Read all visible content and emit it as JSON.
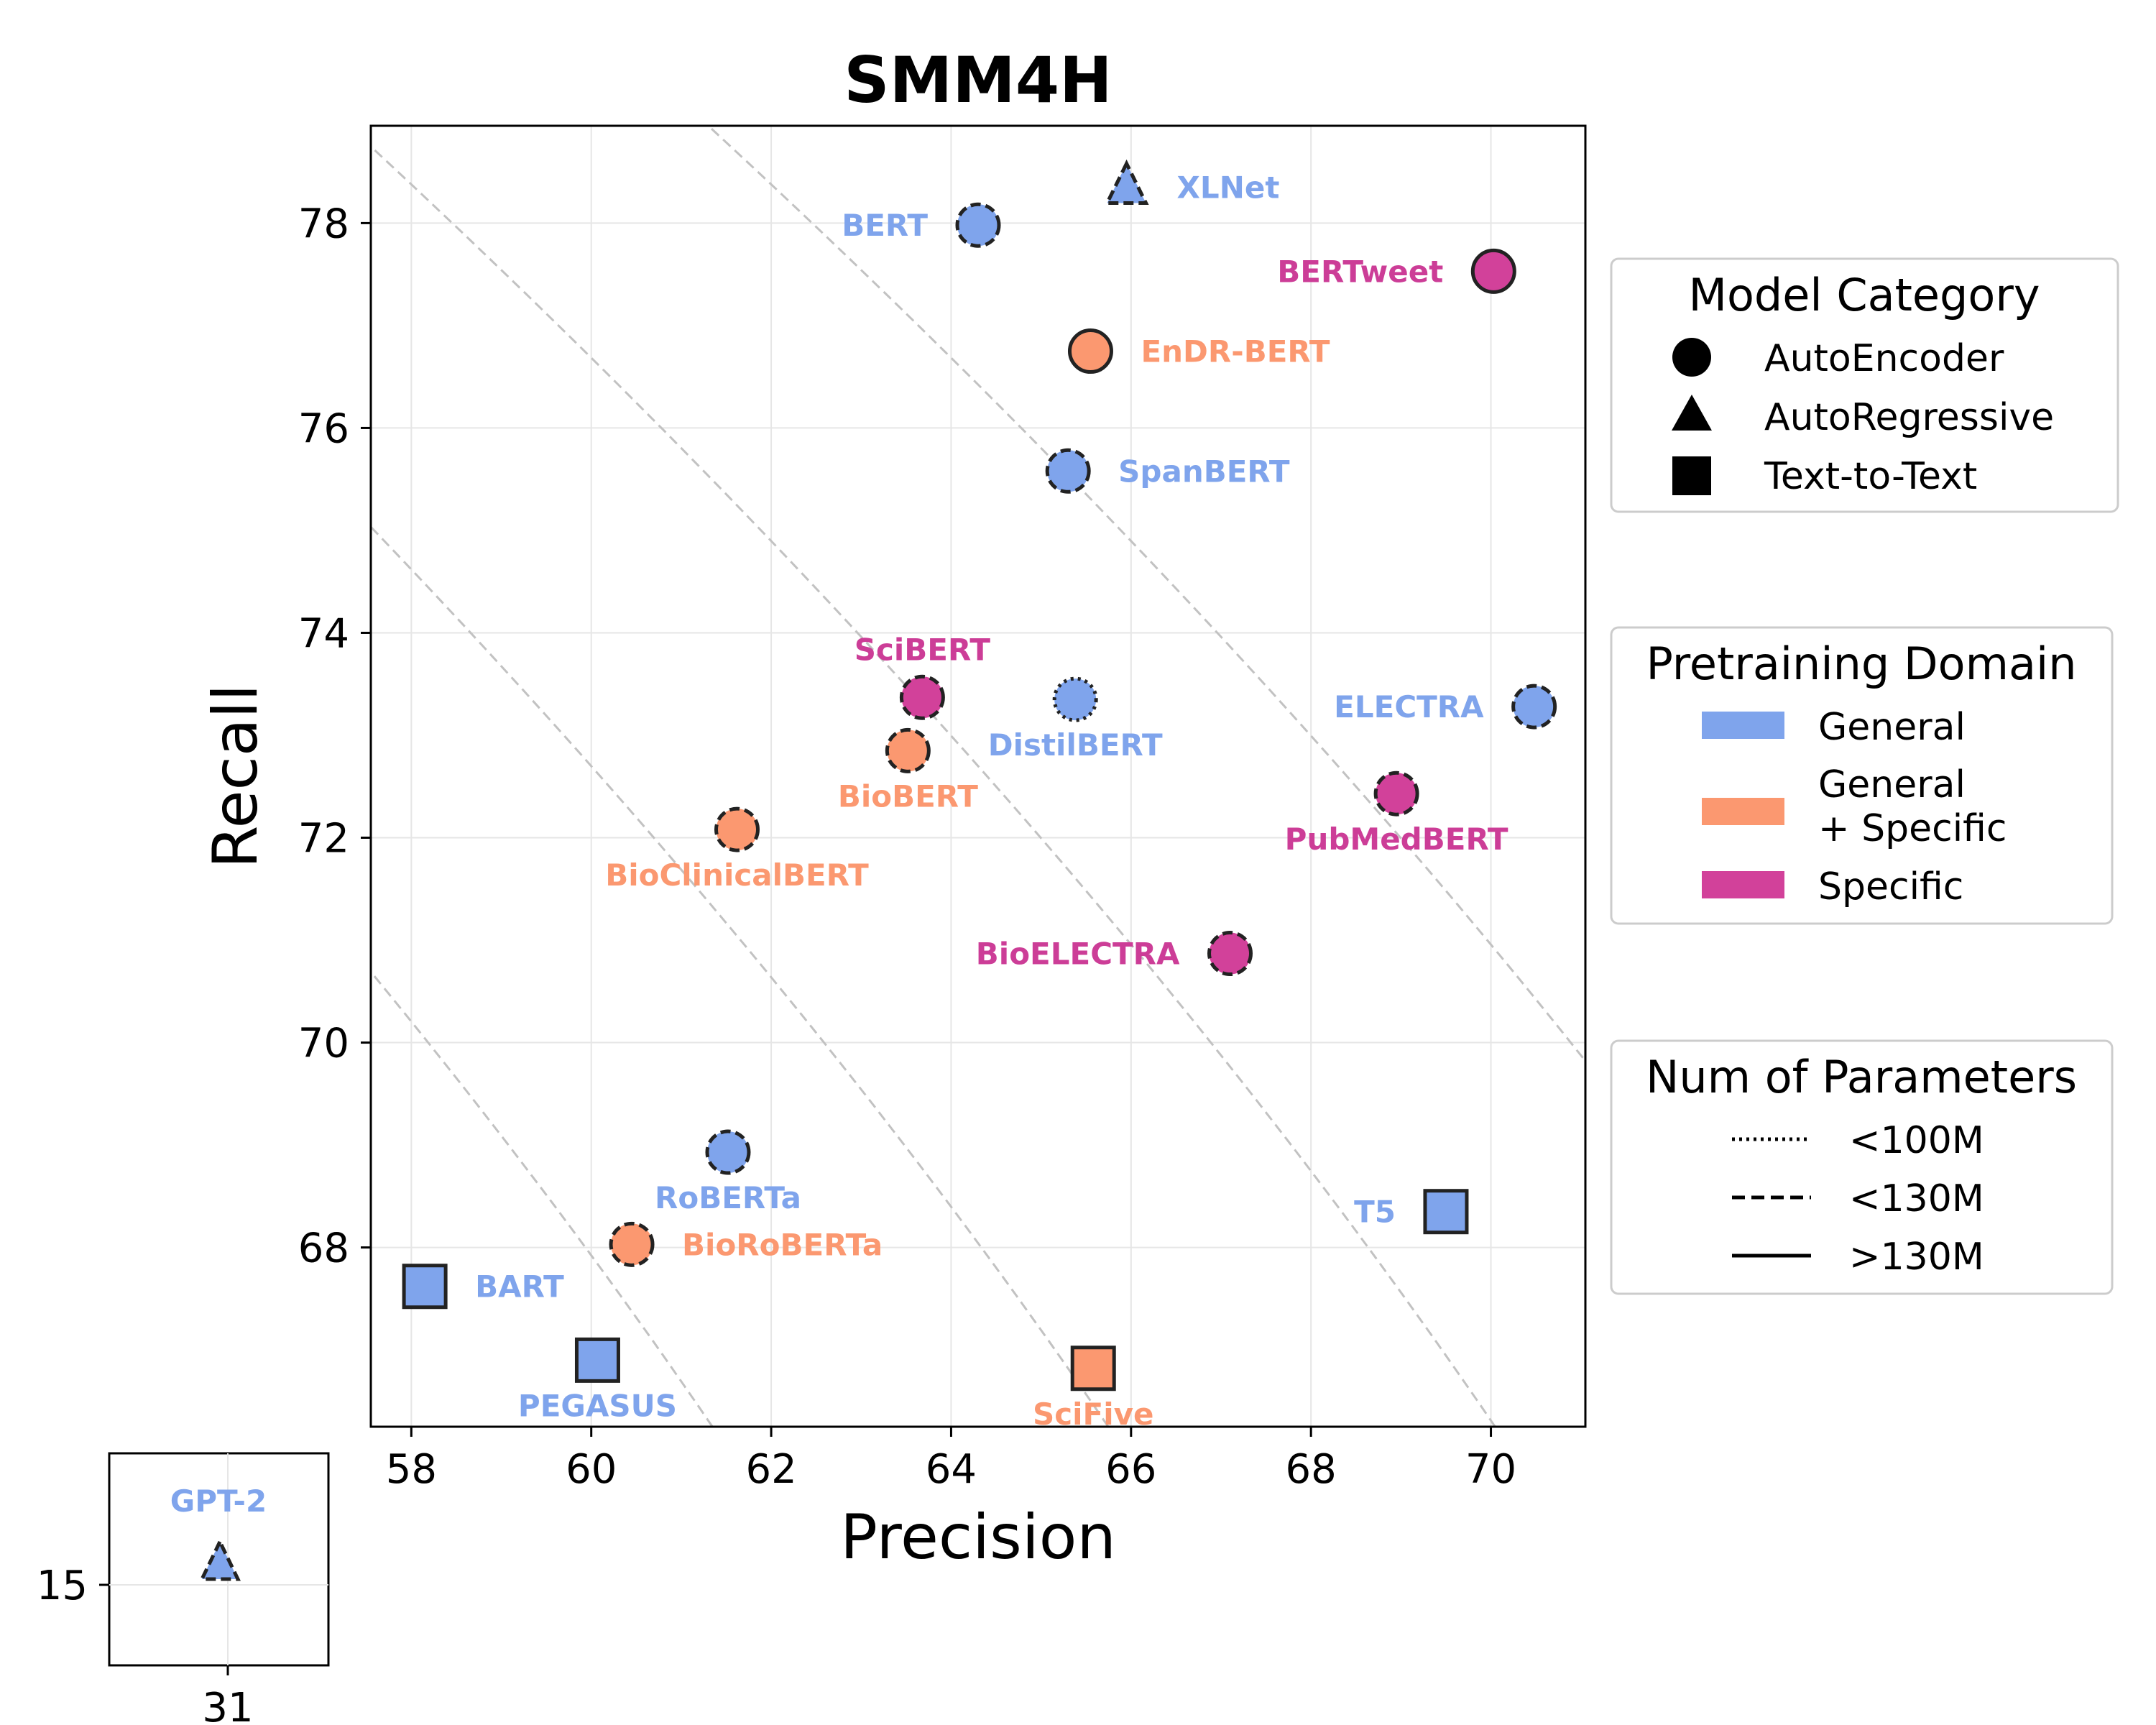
{
  "chart_data": {
    "type": "scatter",
    "title": "SMM4H",
    "xlabel": "Precision",
    "ylabel": "Recall",
    "xlim": [
      57.55,
      71.05
    ],
    "ylim": [
      66.25,
      78.95
    ],
    "xticks": [
      58,
      60,
      62,
      64,
      66,
      68,
      70
    ],
    "yticks": [
      68,
      70,
      72,
      74,
      76,
      78
    ],
    "grid": true,
    "colors": {
      "General": "#7fa4ec",
      "General + Specific": "#fb9870",
      "Specific": "#d2419a"
    },
    "label_colors": {
      "General": "#7fa4ec",
      "General + Specific": "#fb9870",
      "Specific": "#cc3d97"
    },
    "points": [
      {
        "name": "BERT",
        "x": 64.3,
        "y": 77.98,
        "category": "AutoEncoder",
        "domain": "General",
        "params": "<130M",
        "label_pos": "left"
      },
      {
        "name": "XLNet",
        "x": 65.95,
        "y": 78.35,
        "category": "AutoRegressive",
        "domain": "General",
        "params": "<130M",
        "label_pos": "right"
      },
      {
        "name": "BERTweet",
        "x": 70.03,
        "y": 77.53,
        "category": "AutoEncoder",
        "domain": "Specific",
        "params": ">130M",
        "label_pos": "left"
      },
      {
        "name": "EnDR-BERT",
        "x": 65.55,
        "y": 76.75,
        "category": "AutoEncoder",
        "domain": "General + Specific",
        "params": ">130M",
        "label_pos": "right"
      },
      {
        "name": "SpanBERT",
        "x": 65.3,
        "y": 75.58,
        "category": "AutoEncoder",
        "domain": "General",
        "params": "<130M",
        "label_pos": "right"
      },
      {
        "name": "SciBERT",
        "x": 63.68,
        "y": 73.37,
        "category": "AutoEncoder",
        "domain": "Specific",
        "params": "<130M",
        "label_pos": "above"
      },
      {
        "name": "DistilBERT",
        "x": 65.38,
        "y": 73.35,
        "category": "AutoEncoder",
        "domain": "General",
        "params": "<100M",
        "label_pos": "below"
      },
      {
        "name": "ELECTRA",
        "x": 70.48,
        "y": 73.28,
        "category": "AutoEncoder",
        "domain": "General",
        "params": "<130M",
        "label_pos": "left"
      },
      {
        "name": "BioBERT",
        "x": 63.52,
        "y": 72.85,
        "category": "AutoEncoder",
        "domain": "General + Specific",
        "params": "<130M",
        "label_pos": "below"
      },
      {
        "name": "PubMedBERT",
        "x": 68.95,
        "y": 72.43,
        "category": "AutoEncoder",
        "domain": "Specific",
        "params": "<130M",
        "label_pos": "below"
      },
      {
        "name": "BioClinicalBERT",
        "x": 61.62,
        "y": 72.08,
        "category": "AutoEncoder",
        "domain": "General + Specific",
        "params": "<130M",
        "label_pos": "below"
      },
      {
        "name": "BioELECTRA",
        "x": 67.1,
        "y": 70.87,
        "category": "AutoEncoder",
        "domain": "Specific",
        "params": "<130M",
        "label_pos": "left"
      },
      {
        "name": "RoBERTa",
        "x": 61.52,
        "y": 68.93,
        "category": "AutoEncoder",
        "domain": "General",
        "params": "<130M",
        "label_pos": "below"
      },
      {
        "name": "BioRoBERTa",
        "x": 60.45,
        "y": 68.03,
        "category": "AutoEncoder",
        "domain": "General + Specific",
        "params": "<130M",
        "label_pos": "right"
      },
      {
        "name": "T5",
        "x": 69.5,
        "y": 68.35,
        "category": "Text-to-Text",
        "domain": "General",
        "params": ">130M",
        "label_pos": "left"
      },
      {
        "name": "BART",
        "x": 58.15,
        "y": 67.62,
        "category": "Text-to-Text",
        "domain": "General",
        "params": ">130M",
        "label_pos": "right"
      },
      {
        "name": "PEGASUS",
        "x": 60.07,
        "y": 66.9,
        "category": "Text-to-Text",
        "domain": "General",
        "params": ">130M",
        "label_pos": "below"
      },
      {
        "name": "SciFive",
        "x": 65.58,
        "y": 66.82,
        "category": "Text-to-Text",
        "domain": "General + Specific",
        "params": ">130M",
        "label_pos": "below"
      }
    ],
    "contour_sums": [
      124.3,
      128.3,
      132.7,
      137.0,
      141.0
    ],
    "inset": {
      "xtick": "31",
      "ytick": "15",
      "point": {
        "name": "GPT-2",
        "x": 31,
        "y": 15,
        "category": "AutoRegressive",
        "domain": "General",
        "params": "<130M"
      }
    },
    "legends": {
      "category": {
        "title": "Model Category",
        "items": [
          "AutoEncoder",
          "AutoRegressive",
          "Text-to-Text"
        ]
      },
      "domain": {
        "title": "Pretraining Domain",
        "items": [
          [
            "General"
          ],
          [
            "General",
            "+ Specific"
          ],
          [
            "Specific"
          ]
        ]
      },
      "params": {
        "title": "Num of Parameters",
        "items": [
          "<100M",
          "<130M",
          ">130M"
        ]
      }
    }
  }
}
